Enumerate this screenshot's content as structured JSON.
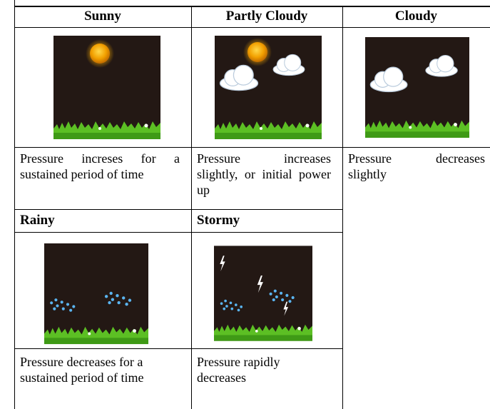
{
  "table": {
    "cells": [
      {
        "title": "Sunny",
        "description": "Pressure increses for a sustained period of time"
      },
      {
        "title": "Partly Cloudy",
        "description": "Pressure increases slightly, or initial power up"
      },
      {
        "title": "Cloudy",
        "description": "Pressure decreases slightly"
      },
      {
        "title": "Rainy",
        "description": "Pressure decreases for a sustained period of time"
      },
      {
        "title": "Stormy",
        "description": "Pressure rapidly decreases"
      }
    ]
  }
}
